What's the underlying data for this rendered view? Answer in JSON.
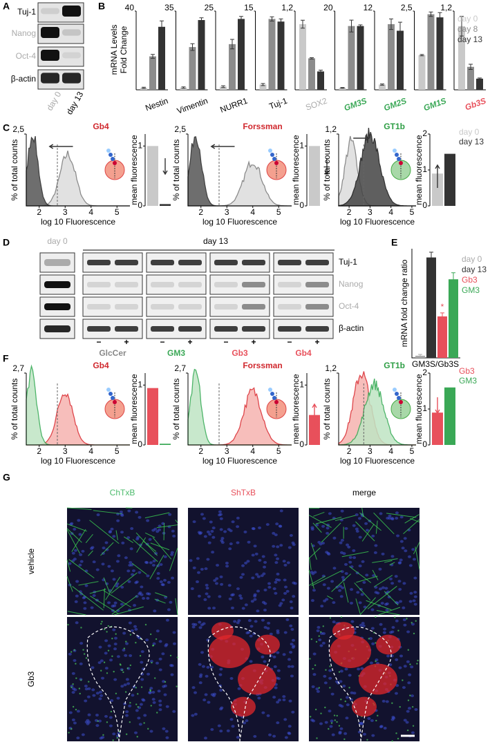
{
  "figure": {
    "panel_labels": {
      "a": "A",
      "b": "B",
      "c": "C",
      "d": "D",
      "e": "E",
      "f": "F",
      "g": "G"
    },
    "a": {
      "rows": [
        "Tuj-1",
        "Nanog",
        "Oct-4",
        "β-actin"
      ],
      "row_colors": [
        "#000000",
        "#aaaaaa",
        "#aaaaaa",
        "#000000"
      ],
      "lanes": [
        "day 0",
        "day 13"
      ],
      "lane_colors": [
        "#aaaaaa",
        "#000000"
      ]
    },
    "b": {
      "type": "bar",
      "y_label_1": "mRNA Levels",
      "y_label_2": "Fold Change",
      "legend": [
        {
          "name": "day 0",
          "color": "#c9c9c9"
        },
        {
          "name": "day 8",
          "color": "#8c8c8c"
        },
        {
          "name": "day 13",
          "color": "#333333"
        }
      ],
      "charts": [
        {
          "name": "Nestin",
          "name_color": "#000000",
          "italic": false,
          "ylim": [
            0,
            40
          ],
          "ytick": 40,
          "values": [
            1,
            17,
            32
          ],
          "errors": [
            0.3,
            1,
            3
          ]
        },
        {
          "name": "Vimentin",
          "name_color": "#000000",
          "italic": false,
          "ylim": [
            0,
            35
          ],
          "ytick": 35,
          "values": [
            1,
            19,
            31
          ],
          "errors": [
            0.3,
            1.5,
            1
          ]
        },
        {
          "name": "NURR1",
          "name_color": "#000000",
          "italic": false,
          "ylim": [
            0,
            25
          ],
          "ytick": 25,
          "values": [
            1,
            14.5,
            22.5
          ],
          "errors": [
            0.3,
            1.5,
            0.8
          ]
        },
        {
          "name": "Tuj-1",
          "name_color": "#000000",
          "italic": false,
          "ylim": [
            0,
            15
          ],
          "ytick": 15,
          "values": [
            1,
            13.5,
            13
          ],
          "errors": [
            0.2,
            0.4,
            0.5
          ]
        },
        {
          "name": "SOX2",
          "name_color": "#aaaaaa",
          "italic": false,
          "ylim": [
            0,
            1.2
          ],
          "ytick": {
            "value": 1.2,
            "label": "1,2"
          },
          "values": [
            1,
            0.48,
            0.28
          ],
          "errors": [
            0.06,
            0.01,
            0.02
          ]
        },
        {
          "name": "GM3S",
          "name_color": "#3aa856",
          "italic": true,
          "ylim": [
            0,
            20
          ],
          "ytick": 20,
          "values": [
            0.5,
            16.2,
            16.2
          ],
          "errors": [
            0.1,
            1.5,
            0.3
          ]
        },
        {
          "name": "GM2S",
          "name_color": "#3aa856",
          "italic": true,
          "ylim": [
            0,
            12
          ],
          "ytick": 12,
          "values": [
            0.8,
            10,
            9
          ],
          "errors": [
            0.1,
            0.8,
            1.3
          ]
        },
        {
          "name": "GM1S",
          "name_color": "#3aa856",
          "italic": true,
          "ylim": [
            0,
            2.5
          ],
          "ytick": {
            "value": 2.5,
            "label": "2,5"
          },
          "values": [
            1.1,
            2.4,
            2.3
          ],
          "errors": [
            0.02,
            0.07,
            0.15
          ]
        },
        {
          "name": "Gb3S",
          "name_color": "#e8505b",
          "italic": true,
          "ylim": [
            0,
            1.2
          ],
          "ytick": {
            "value": 1.2,
            "label": "1,2"
          },
          "values": [
            0.97,
            0.35,
            0.17
          ],
          "errors": [
            0.15,
            0.04,
            0.01
          ]
        }
      ]
    },
    "c": {
      "y_label": "% of total counts",
      "x_label": "log 10 Fluorescence",
      "bar_label": "mean fluorescence",
      "legend": [
        {
          "name": "day 0",
          "color": "#c9c9c9"
        },
        {
          "name": "day 13",
          "color": "#333333"
        }
      ],
      "panels": [
        {
          "title": "Gb4",
          "title_color": "#d0282e",
          "ytick": {
            "value": 2.5,
            "label": "2,5"
          },
          "xlim": [
            1.5,
            5.5
          ],
          "xticks": [
            2,
            3,
            4,
            5
          ],
          "bar_ylim": [
            0,
            1.2
          ],
          "bar_yticks": [
            0,
            1
          ],
          "bar_values": [
            1,
            0.03
          ]
        },
        {
          "title": "Forssman",
          "title_color": "#d0282e",
          "ytick": {
            "value": 2.5,
            "label": "2,5"
          },
          "xlim": [
            1.5,
            5.5
          ],
          "xticks": [
            2,
            3,
            4,
            5
          ],
          "bar_ylim": [
            0,
            1.2
          ],
          "bar_yticks": [
            0,
            1
          ],
          "bar_values": [
            1,
            0
          ]
        },
        {
          "title": "GT1b",
          "title_color": "#2e9e45",
          "ytick": {
            "value": 1.2,
            "label": "1,2"
          },
          "xlim": [
            1.5,
            5.2
          ],
          "xticks": [
            2,
            3,
            4,
            5
          ],
          "bar_ylim": [
            0,
            2
          ],
          "bar_yticks": [
            0,
            1,
            2
          ],
          "bar_values": [
            0.9,
            1.45
          ]
        }
      ]
    },
    "d": {
      "day0": "day 0",
      "day13": "day 13",
      "rows": [
        "Tuj-1",
        "Nanog",
        "Oct-4",
        "β-actin"
      ],
      "row_colors": [
        "#000000",
        "#aaaaaa",
        "#aaaaaa",
        "#000000"
      ],
      "signs": [
        "−",
        "+"
      ],
      "groups": [
        {
          "name": "GlcCer",
          "color": "#888888"
        },
        {
          "name": "GM3",
          "color": "#3aa856"
        },
        {
          "name": "Gb3",
          "color": "#e8505b"
        },
        {
          "name": "Gb4",
          "color": "#e8505b"
        }
      ]
    },
    "e": {
      "type": "bar",
      "y_label": "mRNA fold change ratio",
      "x_label": "GM3S/Gb3S",
      "ylim": [
        0,
        25
      ],
      "marker": "*",
      "series": [
        {
          "name": "day 0",
          "color": "#aaaaaa",
          "value": 0.5,
          "error": 0.3
        },
        {
          "name": "day 13",
          "color": "#333333",
          "value": 23,
          "error": 1.2
        },
        {
          "name": "Gb3",
          "color": "#e8505b",
          "value": 9.5,
          "error": 0.8
        },
        {
          "name": "GM3",
          "color": "#3aa856",
          "value": 18,
          "error": 1.5
        }
      ]
    },
    "f": {
      "y_label": "% of total counts",
      "x_label": "log 10 Fluorescence",
      "bar_label": "mean fluorescence",
      "legend": [
        {
          "name": "Gb3",
          "color": "#e8505b"
        },
        {
          "name": "GM3",
          "color": "#3aa856"
        }
      ],
      "panels": [
        {
          "title": "Gb4",
          "title_color": "#d0282e",
          "ytick": {
            "value": 2.7,
            "label": "2,7"
          },
          "xlim": [
            1.5,
            5.5
          ],
          "xticks": [
            2,
            3,
            4,
            5
          ],
          "bar_ylim": [
            0,
            1.2
          ],
          "bar_yticks": [
            0,
            1
          ],
          "bar_values": [
            0.95,
            0.02
          ]
        },
        {
          "title": "Forssman",
          "title_color": "#d0282e",
          "ytick": {
            "value": 2.7,
            "label": "2,7"
          },
          "xlim": [
            1.5,
            5.5
          ],
          "xticks": [
            2,
            3,
            4,
            5
          ],
          "bar_ylim": [
            0,
            1.2
          ],
          "bar_yticks": [
            0,
            1
          ],
          "bar_values": [
            0.5,
            0
          ]
        },
        {
          "title": "GT1b",
          "title_color": "#2e9e45",
          "ytick": {
            "value": 1.2,
            "label": "1,2"
          },
          "xlim": [
            1.5,
            5.2
          ],
          "xticks": [
            2,
            3,
            4,
            5
          ],
          "bar_ylim": [
            0,
            2
          ],
          "bar_yticks": [
            0,
            1,
            2
          ],
          "bar_values": [
            0.9,
            1.6
          ]
        }
      ]
    },
    "g": {
      "columns": [
        "ChTxB",
        "ShTxB",
        "merge"
      ],
      "column_colors": [
        "#4cbb6c",
        "#e8505b",
        "#000000"
      ],
      "rows": [
        "vehicle",
        "Gb3"
      ]
    }
  }
}
